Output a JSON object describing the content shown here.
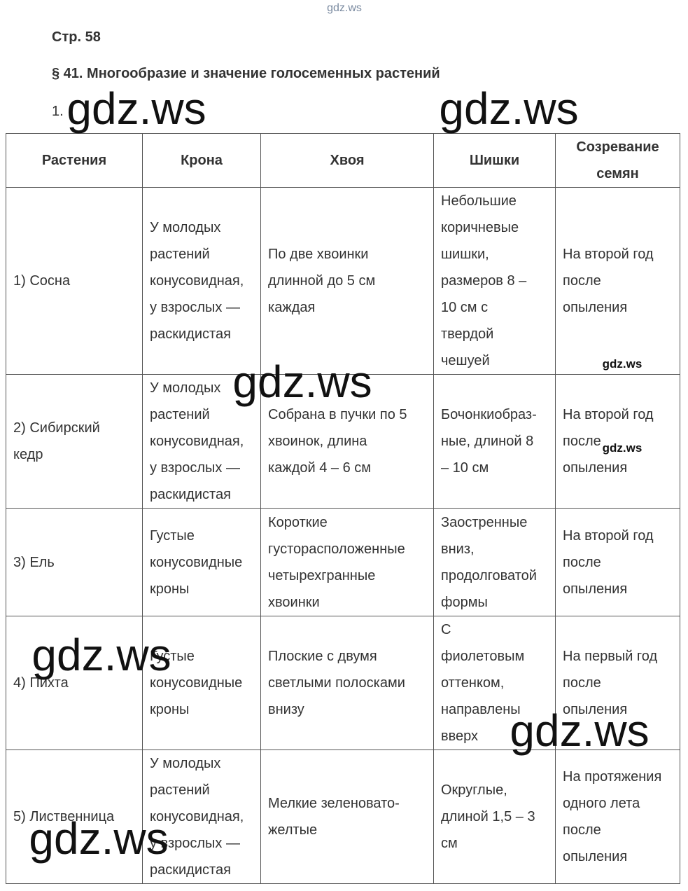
{
  "header": {
    "page": "Стр. 58",
    "title": "§ 41. Многообразие и значение голосеменных растений",
    "item": "1."
  },
  "table": {
    "header": [
      "Растения",
      "Крона",
      "Хвоя",
      "Шишки",
      "Созревание\nсемян"
    ],
    "rows": [
      [
        "1) Сосна",
        "У молодых\nрастений\nконусовидная,\nу взрослых —\nраскидистая",
        "По две хвоинки\nдлинной до 5 см\nкаждая",
        "Небольшие\nкоричневые\nшишки,\nразмеров 8 –\n10 см с\nтвердой\nчешуей",
        "На второй год\nпосле\nопыления"
      ],
      [
        "2) Сибирский\nкедр",
        "У молодых\nрастений\nконусовидная,\nу взрослых —\nраскидистая",
        "Собрана в пучки по 5\nхвоинок, длина\nкаждой 4 – 6 см",
        "Бочонкиобраз-\nные, длиной 8\n– 10 см",
        "На второй год\nпосле\nопыления"
      ],
      [
        "3) Ель",
        "Густые\nконусовидные\nкроны",
        "Короткие\nгусторасположенные\nчетырехгранные\nхвоинки",
        "Заостренные\nвниз,\nпродолговатой\nформы",
        "На второй год\nпосле\nопыления"
      ],
      [
        "4) Пихта",
        "Густые\nконусовидные\nкроны",
        "Плоские с двумя\nсветлыми полосками\nвнизу",
        "С\nфиолетовым\nоттенком,\nнаправлены\nвверх",
        "На первый год\nпосле\nопыления"
      ],
      [
        "5) Лиственница",
        "У молодых\nрастений\nконусовидная,\nу взрослых —\nраскидистая",
        "Мелкие зеленовато-\nжелтые",
        "Округлые,\nдлиной 1,5 – 3\nсм",
        "На протяжения\nодного лета\nпосле\nопыления"
      ]
    ]
  },
  "watermarks": [
    "gdz.ws",
    "gdz.ws",
    "gdz.ws",
    "gdz.ws",
    "gdz.ws",
    "gdz.ws",
    "gdz.ws",
    "gdz.ws",
    "gdz.ws"
  ]
}
